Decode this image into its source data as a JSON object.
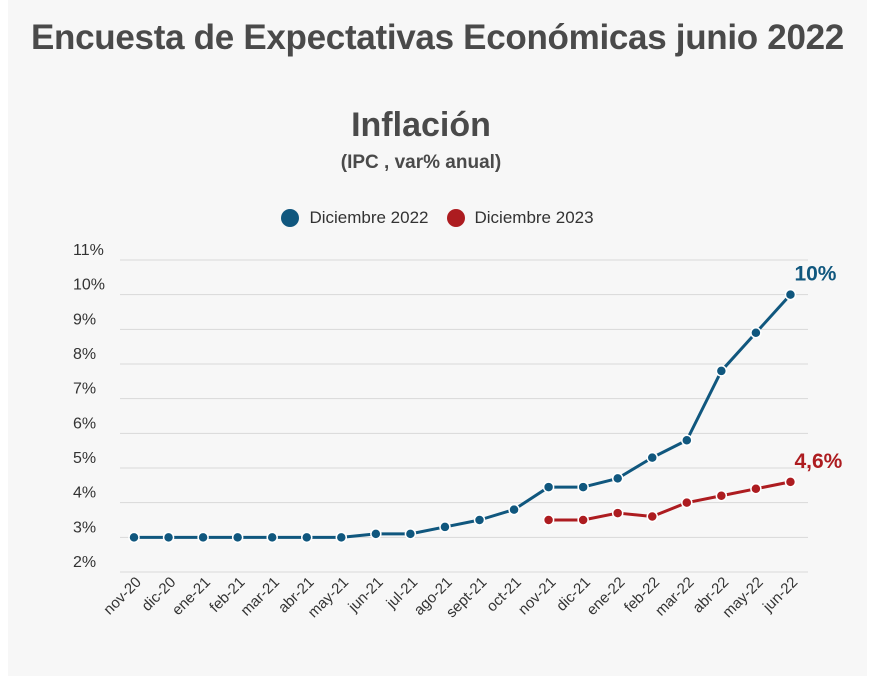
{
  "page": {
    "title": "Encuesta de Expectativas Económicas junio 2022"
  },
  "colors": {
    "series_2022": "#10577e",
    "series_2023": "#ad1c20",
    "grid": "#d9d9d9"
  },
  "chart_data": {
    "type": "line",
    "title": "Inflación",
    "subtitle": "(IPC , var% anual)",
    "xlabel": "",
    "ylabel": "",
    "ylim": [
      2,
      11
    ],
    "yticks": [
      "11%",
      "10%",
      "9%",
      "8%",
      "7%",
      "6%",
      "5%",
      "4%",
      "3%",
      "2%"
    ],
    "grid": true,
    "legend_position": "top-center",
    "categories": [
      "nov-20",
      "dic-20",
      "ene-21",
      "feb-21",
      "mar-21",
      "abr-21",
      "may-21",
      "jun-21",
      "jul-21",
      "ago-21",
      "sept-21",
      "oct-21",
      "nov-21",
      "dic-21",
      "ene-22",
      "feb-22",
      "mar-22",
      "abr-22",
      "may-22",
      "jun-22"
    ],
    "series": [
      {
        "name": "Diciembre 2022",
        "color": "#10577e",
        "values": [
          3.0,
          3.0,
          3.0,
          3.0,
          3.0,
          3.0,
          3.0,
          3.1,
          3.1,
          3.3,
          3.5,
          3.8,
          4.45,
          4.45,
          4.7,
          5.3,
          5.8,
          7.8,
          8.9,
          10.0
        ],
        "end_label": "10%"
      },
      {
        "name": "Diciembre 2023",
        "color": "#ad1c20",
        "values": [
          null,
          null,
          null,
          null,
          null,
          null,
          null,
          null,
          null,
          null,
          null,
          null,
          3.5,
          3.5,
          3.7,
          3.6,
          4.0,
          4.2,
          4.4,
          4.6
        ],
        "end_label": "4,6%"
      }
    ]
  }
}
